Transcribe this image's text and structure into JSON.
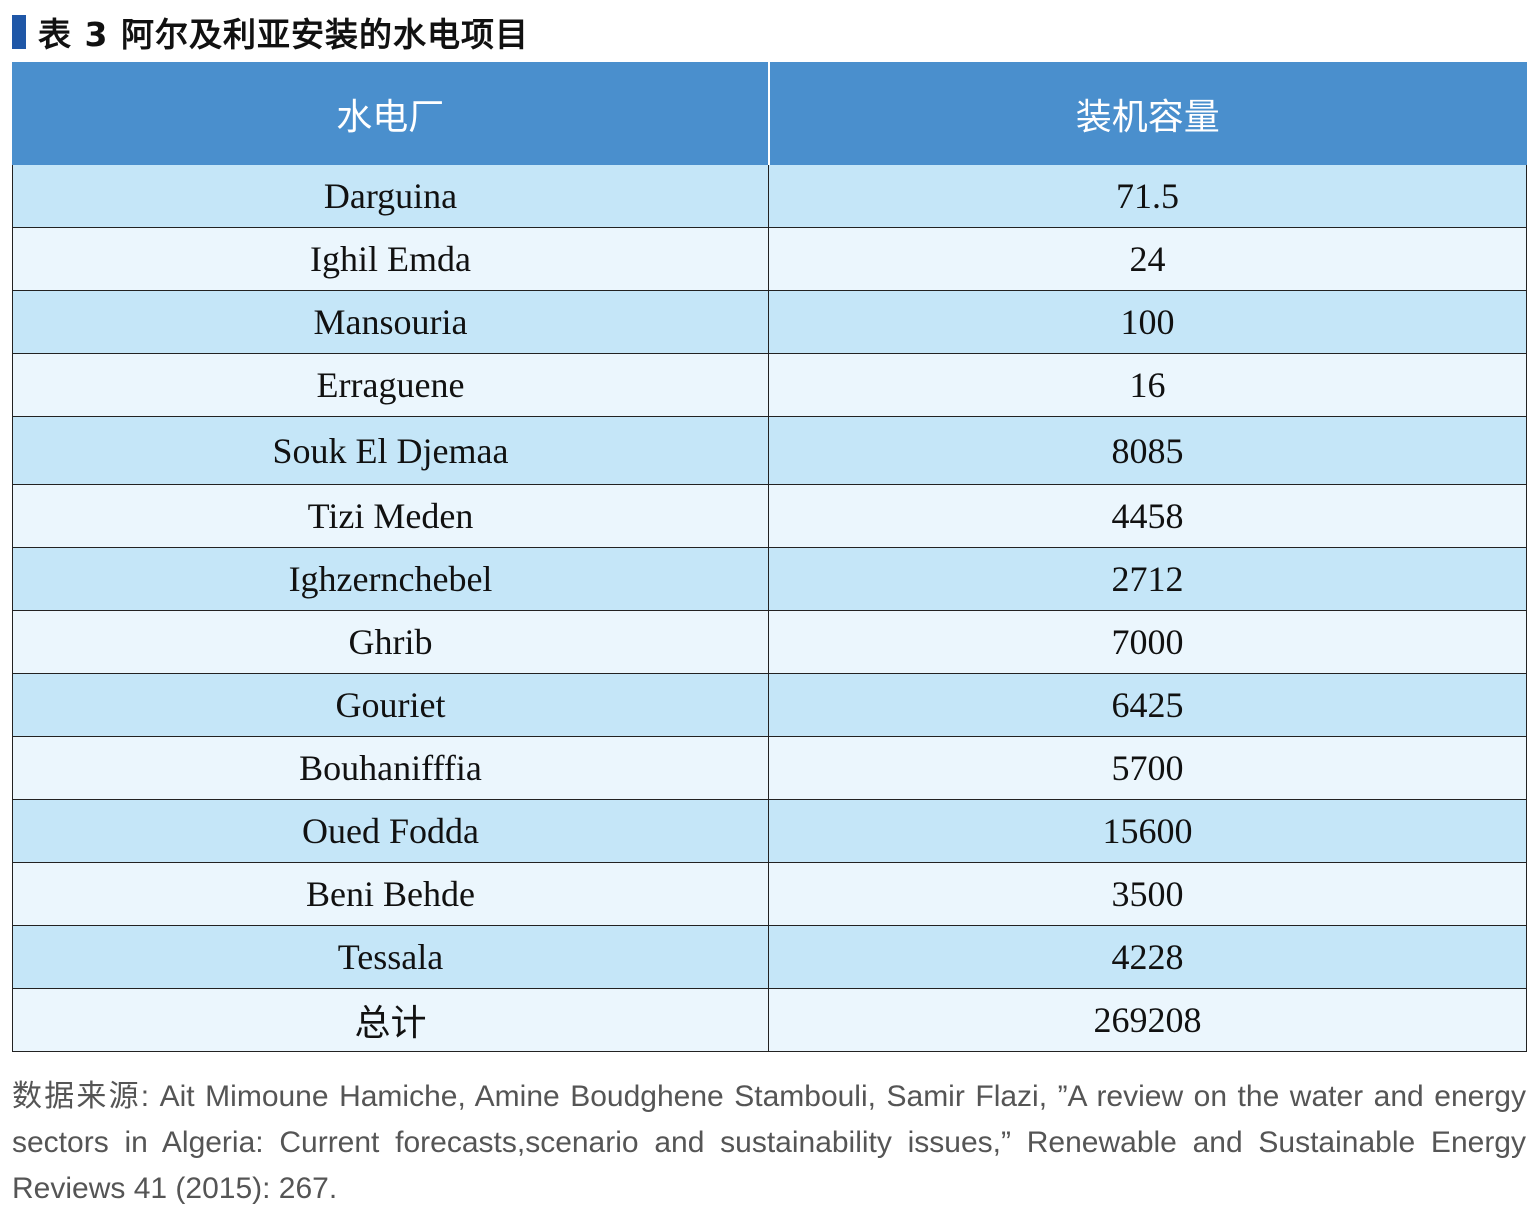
{
  "title": "表 3  阿尔及利亚安装的水电项目",
  "table": {
    "headers": [
      "水电厂",
      "装机容量"
    ],
    "rows": [
      {
        "name": "Darguina",
        "capacity": "71.5"
      },
      {
        "name": "Ighil Emda",
        "capacity": "24"
      },
      {
        "name": "Mansouria",
        "capacity": "100"
      },
      {
        "name": "Erraguene",
        "capacity": "16"
      },
      {
        "name": "Souk El Djemaa",
        "capacity": "8085"
      },
      {
        "name": "Tizi Meden",
        "capacity": "4458"
      },
      {
        "name": "Ighzernchebel",
        "capacity": "2712"
      },
      {
        "name": "Ghrib",
        "capacity": "7000"
      },
      {
        "name": "Gouriet",
        "capacity": "6425"
      },
      {
        "name": "Bouhanifffia",
        "capacity": "5700"
      },
      {
        "name": "Oued Fodda",
        "capacity": "15600"
      },
      {
        "name": "Beni Behde",
        "capacity": "3500"
      },
      {
        "name": "Tessala",
        "capacity": "4228"
      }
    ],
    "total": {
      "label": "总计",
      "value": "269208"
    }
  },
  "source": "数据来源: Ait Mimoune Hamiche, Amine Boudghene Stambouli, Samir Flazi, ”A review on the water and energy sectors in Algeria: Current forecasts,scenario and sustainability issues,” Renewable and Sustainable Energy Reviews 41 (2015): 267."
}
